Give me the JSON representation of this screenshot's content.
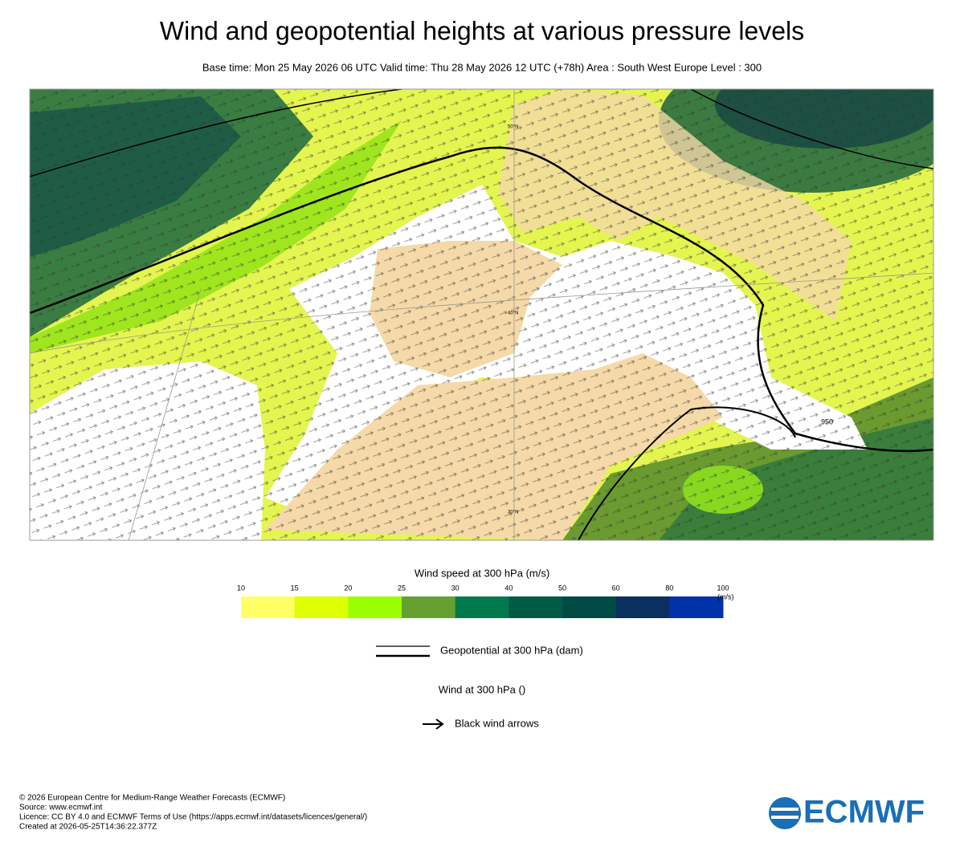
{
  "header": {
    "title": "Wind and geopotential heights at various pressure levels",
    "subtitle": "Base time: Mon 25 May 2026 06 UTC Valid time: Thu 28 May 2026 12 UTC (+78h) Area : South West Europe Level : 300"
  },
  "map": {
    "contour_labels": [
      "950"
    ],
    "lat_labels": [
      "50°N",
      "40°N",
      "30°N"
    ]
  },
  "legend": {
    "colorbar": {
      "title": "Wind speed at 300 hPa (m/s)",
      "ticks": [
        10,
        15,
        20,
        25,
        30,
        40,
        50,
        60,
        80,
        100
      ],
      "unit": "(m/s)",
      "colors": [
        "#ffff66",
        "#ddff00",
        "#99ff00",
        "#66a030",
        "#007a4d",
        "#005a45",
        "#004a45",
        "#0a3060",
        "#0033aa"
      ]
    },
    "contour": "Geopotential at 300 hPa (dam)",
    "wind": "Wind at 300 hPa ()",
    "arrows": "Black wind arrows"
  },
  "footer": {
    "lines": [
      "© 2026 European Centre for Medium-Range Weather Forecasts (ECMWF)",
      "Source: www.ecmwf.int",
      "Licence: CC BY 4.0 and ECMWF Terms of Use (https://apps.ecmwf.int/datasets/licences/general/)",
      "Created at 2026-05-25T14:36:22.377Z"
    ],
    "logo": "ECMWF"
  }
}
